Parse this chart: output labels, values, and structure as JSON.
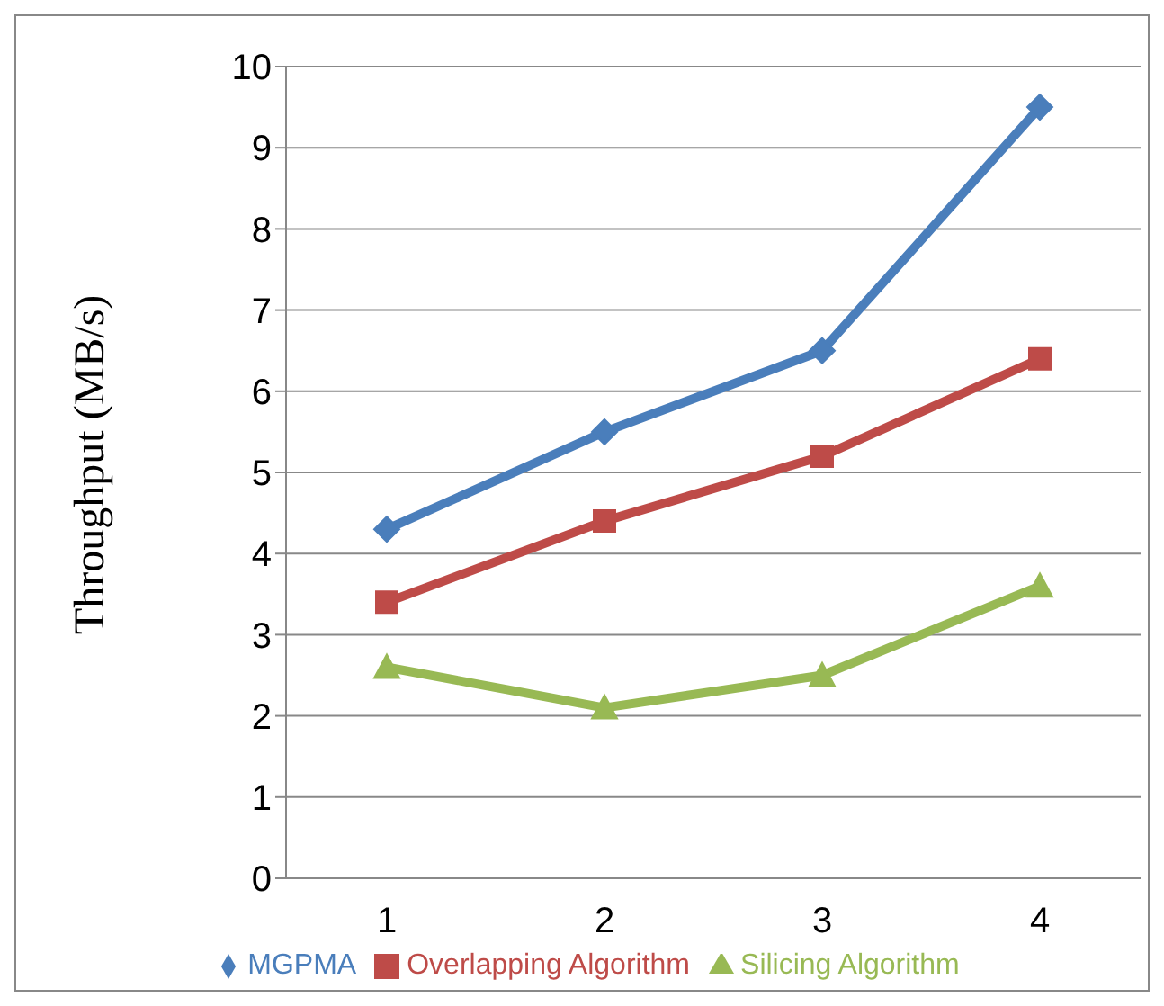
{
  "chart_data": {
    "type": "line",
    "ylabel": "Throughput (MB/s)",
    "categories": [
      "1",
      "2",
      "3",
      "4"
    ],
    "series": [
      {
        "name": "MGPMA",
        "color": "#4a7ebb",
        "values": [
          4.3,
          5.5,
          6.5,
          9.5
        ],
        "marker": "diamond"
      },
      {
        "name": "Overlapping Algorithm",
        "color": "#be4b48",
        "values": [
          3.4,
          4.4,
          5.2,
          6.4
        ],
        "marker": "square"
      },
      {
        "name": "Silicing Algorithm",
        "color": "#98b954",
        "values": [
          2.6,
          2.1,
          2.5,
          3.6
        ],
        "marker": "triangle"
      }
    ],
    "ylim": [
      0,
      10
    ],
    "yticks": [
      0,
      1,
      2,
      3,
      4,
      5,
      6,
      7,
      8,
      9,
      10
    ],
    "grid": "y",
    "legend": "bottom",
    "line_style": "solid"
  }
}
